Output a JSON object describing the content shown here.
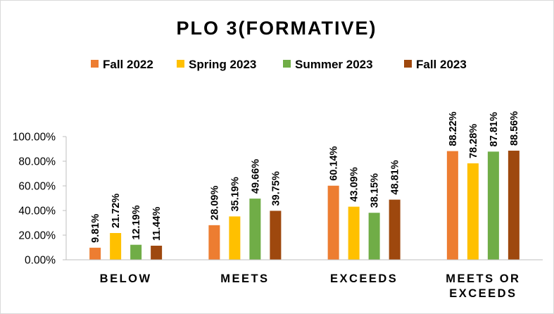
{
  "chart_data": {
    "type": "bar",
    "title": "PLO 3(FORMATIVE)",
    "xlabel": "",
    "ylabel": "",
    "categories": [
      [
        "BELOW"
      ],
      [
        "MEETS"
      ],
      [
        "EXCEEDS"
      ],
      [
        "MEETS OR",
        "EXCEEDS"
      ]
    ],
    "series": [
      {
        "name": "Fall 2022",
        "color": "#ED7D31",
        "values": [
          9.81,
          28.09,
          60.14,
          88.22
        ],
        "labels": [
          "9.81%",
          "28.09%",
          "60.14%",
          "88.22%"
        ]
      },
      {
        "name": "Spring 2023",
        "color": "#FFC000",
        "values": [
          21.72,
          35.19,
          43.09,
          78.28
        ],
        "labels": [
          "21.72%",
          "35.19%",
          "43.09%",
          "78.28%"
        ]
      },
      {
        "name": "Summer 2023",
        "color": "#70AD47",
        "values": [
          12.19,
          49.66,
          38.15,
          87.81
        ],
        "labels": [
          "12.19%",
          "49.66%",
          "38.15%",
          "87.81%"
        ]
      },
      {
        "name": "Fall 2023",
        "color": "#9E480E",
        "values": [
          11.44,
          39.75,
          48.81,
          88.56
        ],
        "labels": [
          "11.44%",
          "39.75%",
          "48.81%",
          "88.56%"
        ]
      }
    ],
    "y_ticks": [
      {
        "value": 0,
        "label": "0.00%"
      },
      {
        "value": 20,
        "label": "20.00%"
      },
      {
        "value": 40,
        "label": "40.00%"
      },
      {
        "value": 60,
        "label": "60.00%"
      },
      {
        "value": 80,
        "label": "80.00%"
      },
      {
        "value": 100,
        "label": "100.00%"
      }
    ],
    "ylim": [
      0,
      100
    ],
    "grid": false,
    "legend_position": "top"
  }
}
